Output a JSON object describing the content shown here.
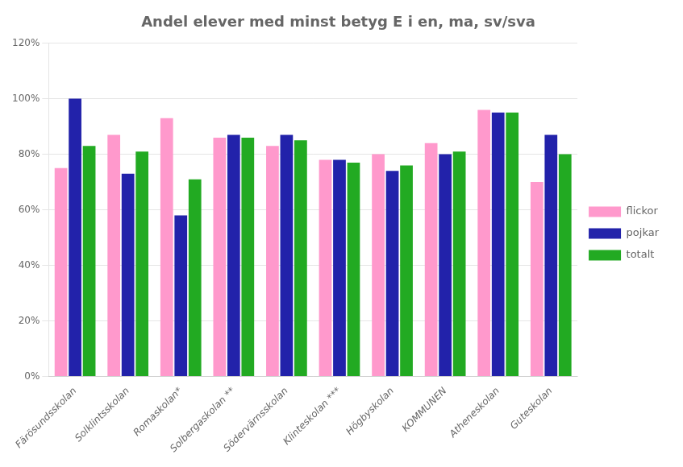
{
  "chart_data": {
    "type": "bar",
    "title": "Andel elever med minst betyg E i en, ma, sv/sva",
    "categories": [
      "Färösundsskolan",
      "Solklintsskolan",
      "Romaskolan*",
      "Solbergaskolan **",
      "Södervärnsskolan",
      "Klinteskolan ***",
      "Högbyskolan",
      "KOMMUNEN",
      "Atheneskolan",
      "Guteskolan"
    ],
    "series": [
      {
        "name": "flickor",
        "color": "#ff99cc",
        "values": [
          0.75,
          0.87,
          0.93,
          0.86,
          0.83,
          0.78,
          0.8,
          0.84,
          0.96,
          0.7
        ]
      },
      {
        "name": "pojkar",
        "color": "#2222aa",
        "values": [
          1.0,
          0.73,
          0.58,
          0.87,
          0.87,
          0.78,
          0.74,
          0.8,
          0.95,
          0.87
        ]
      },
      {
        "name": "totalt",
        "color": "#22aa22",
        "values": [
          0.83,
          0.81,
          0.71,
          0.86,
          0.85,
          0.77,
          0.76,
          0.81,
          0.95,
          0.8
        ]
      }
    ],
    "ylim": [
      0,
      1.2
    ],
    "yticks": [
      {
        "value": 0,
        "label": "0%"
      },
      {
        "value": 0.2,
        "label": "20%"
      },
      {
        "value": 0.4,
        "label": "40%"
      },
      {
        "value": 0.6,
        "label": "60%"
      },
      {
        "value": 0.8,
        "label": "80%"
      },
      {
        "value": 1.0,
        "label": "100%"
      },
      {
        "value": 1.2,
        "label": "120%"
      }
    ],
    "grid": true,
    "legend": "right"
  }
}
